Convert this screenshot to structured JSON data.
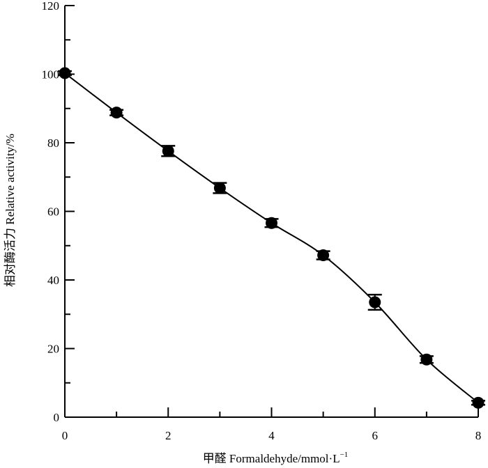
{
  "chart_data": {
    "type": "line",
    "xlabel": "甲醛 Formaldehyde/mmol·L",
    "xlabel_superscript": "−1",
    "ylabel": "相对酶活力 Relative activity/%",
    "xlim": [
      0,
      8
    ],
    "ylim": [
      0,
      120
    ],
    "x_ticks": [
      0,
      2,
      4,
      6,
      8
    ],
    "y_ticks": [
      0,
      20,
      40,
      60,
      80,
      100,
      120
    ],
    "x_ticks_minor": [
      0,
      1,
      2,
      3,
      4,
      5,
      6,
      7,
      8
    ],
    "y_ticks_minor": [
      0,
      10,
      20,
      30,
      40,
      50,
      60,
      70,
      80,
      90,
      100,
      110,
      120
    ],
    "grid": false,
    "legend": "none",
    "series": [
      {
        "x": [
          0,
          1,
          2,
          3,
          4,
          5,
          6,
          7,
          8
        ],
        "y": [
          100.3,
          88.8,
          77.6,
          66.8,
          56.6,
          47.2,
          33.5,
          16.8,
          4.2
        ],
        "error": [
          0.6,
          0.8,
          1.5,
          1.5,
          1.2,
          1.2,
          2.2,
          1.0,
          0.6
        ]
      }
    ],
    "colors": {
      "line": "#000000",
      "marker": "#000000"
    }
  }
}
